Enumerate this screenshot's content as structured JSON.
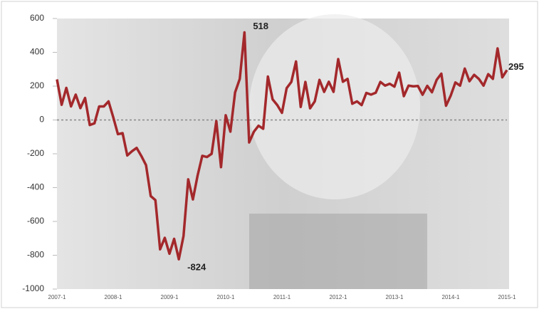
{
  "chart_data": {
    "type": "line",
    "categories": [
      "2007-1",
      null,
      null,
      null,
      null,
      null,
      null,
      null,
      null,
      null,
      null,
      null,
      "2008-1",
      null,
      null,
      null,
      null,
      null,
      null,
      null,
      null,
      null,
      null,
      null,
      "2009-1",
      null,
      null,
      null,
      null,
      null,
      null,
      null,
      null,
      null,
      null,
      null,
      "2010-1",
      null,
      null,
      null,
      null,
      null,
      null,
      null,
      null,
      null,
      null,
      null,
      "2011-1",
      null,
      null,
      null,
      null,
      null,
      null,
      null,
      null,
      null,
      null,
      null,
      "2012-1",
      null,
      null,
      null,
      null,
      null,
      null,
      null,
      null,
      null,
      null,
      null,
      "2013-1",
      null,
      null,
      null,
      null,
      null,
      null,
      null,
      null,
      null,
      null,
      null,
      "2014-1",
      null,
      null,
      null,
      null,
      null,
      null,
      null,
      null,
      null,
      null,
      null,
      "2015-1"
    ],
    "series": [
      {
        "color": "#a3282b",
        "values": [
          240,
          90,
          190,
          80,
          150,
          70,
          130,
          -30,
          -20,
          80,
          80,
          110,
          17,
          -84,
          -78,
          -210,
          -185,
          -165,
          -213,
          -267,
          -450,
          -474,
          -765,
          -697,
          -791,
          -703,
          -824,
          -686,
          -351,
          -470,
          -329,
          -212,
          -219,
          -200,
          -7,
          -279,
          28,
          -69,
          163,
          243,
          518,
          -133,
          -70,
          -34,
          -52,
          257,
          122,
          88,
          42,
          188,
          225,
          346,
          77,
          225,
          69,
          110,
          237,
          166,
          226,
          166,
          360,
          226,
          243,
          96,
          110,
          88,
          160,
          150,
          161,
          225,
          203,
          214,
          197,
          280,
          141,
          203,
          199,
          201,
          149,
          202,
          164,
          237,
          274,
          84,
          144,
          222,
          203,
          304,
          229,
          267,
          243,
          203,
          271,
          243,
          423,
          252,
          295
        ]
      }
    ],
    "annotations": [
      518,
      -824,
      295
    ],
    "ylim": [
      -1000,
      600
    ],
    "yticks": [
      -1000,
      -800,
      -600,
      -400,
      -200,
      0,
      200,
      400,
      600
    ],
    "zero_line": true
  }
}
